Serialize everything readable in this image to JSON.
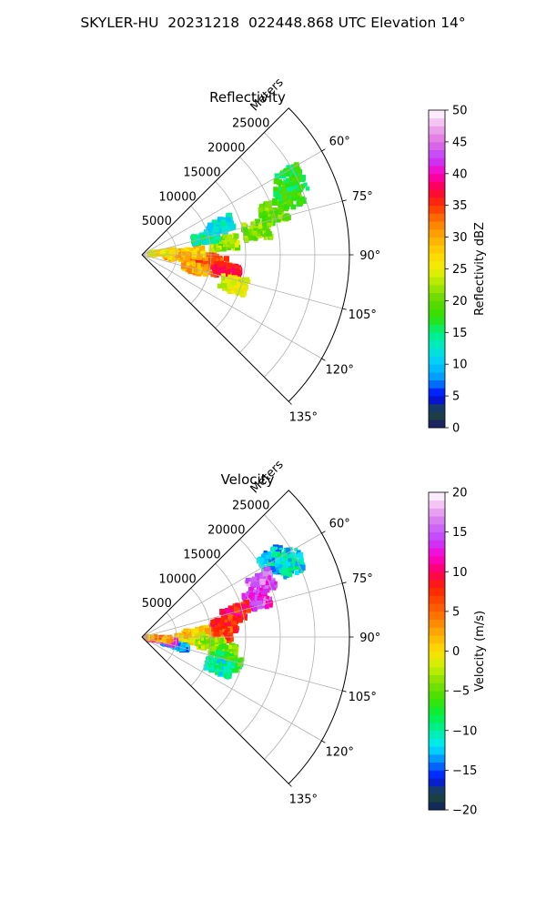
{
  "figure": {
    "title": "SKYLER-HU  20231218  022448.868 UTC Elevation 14°"
  },
  "chart_data": [
    {
      "type": "heatmap",
      "projection": "polar-sector",
      "title": "Reflectivity",
      "radial_label": "Meters",
      "radial_ticks": [
        5000,
        10000,
        15000,
        20000,
        25000
      ],
      "radial_tick_labels": [
        "5000",
        "10000",
        "15000",
        "20000",
        "25000"
      ],
      "rlim": [
        0,
        30000
      ],
      "azimuth_ticks": [
        60,
        75,
        90,
        105,
        120,
        135
      ],
      "azimuth_tick_labels": [
        "60°",
        "75°",
        "90°",
        "105°",
        "120°",
        "135°"
      ],
      "azimuth_range": [
        45,
        135
      ],
      "grid": true,
      "colorbar": {
        "label": "Reflectivity dBZ",
        "range": [
          0,
          50
        ],
        "ticks": [
          0,
          5,
          10,
          15,
          20,
          25,
          30,
          35,
          40,
          45,
          50
        ],
        "tick_labels": [
          "0",
          "5",
          "10",
          "15",
          "20",
          "25",
          "30",
          "35",
          "40",
          "45",
          "50"
        ],
        "colormap_stops": [
          [
            0,
            "#1a1a6e"
          ],
          [
            2.5,
            "#1f4a3a"
          ],
          [
            5,
            "#0000ff"
          ],
          [
            7.5,
            "#0090ff"
          ],
          [
            10,
            "#00c8ff"
          ],
          [
            12.5,
            "#00e8d0"
          ],
          [
            15,
            "#00f080"
          ],
          [
            17.5,
            "#30e000"
          ],
          [
            20,
            "#60d800"
          ],
          [
            22.5,
            "#a8e800"
          ],
          [
            25,
            "#f0f000"
          ],
          [
            27.5,
            "#ffd400"
          ],
          [
            30,
            "#ffaa00"
          ],
          [
            32.5,
            "#ff7a00"
          ],
          [
            35,
            "#ff3000"
          ],
          [
            37.5,
            "#ff0040"
          ],
          [
            40,
            "#ff00c0"
          ],
          [
            42.5,
            "#c040ff"
          ],
          [
            45,
            "#e070e0"
          ],
          [
            47.5,
            "#f0b0f0"
          ],
          [
            50,
            "#ffffff"
          ]
        ]
      },
      "echo_cells": [
        {
          "az": 94,
          "r": 9000,
          "value": 34
        },
        {
          "az": 97,
          "r": 11000,
          "value": 33
        },
        {
          "az": 101,
          "r": 12500,
          "value": 36
        },
        {
          "az": 88,
          "r": 7000,
          "value": 28
        },
        {
          "az": 93,
          "r": 5000,
          "value": 29
        },
        {
          "az": 104,
          "r": 8000,
          "value": 30
        },
        {
          "az": 108,
          "r": 14000,
          "value": 25
        },
        {
          "az": 82,
          "r": 12000,
          "value": 22
        },
        {
          "az": 78,
          "r": 17000,
          "value": 21
        },
        {
          "az": 72,
          "r": 20000,
          "value": 20
        },
        {
          "az": 68,
          "r": 23000,
          "value": 18
        },
        {
          "az": 64,
          "r": 24000,
          "value": 17
        },
        {
          "az": 85,
          "r": 3000,
          "value": 26
        },
        {
          "az": 75,
          "r": 9500,
          "value": 14
        },
        {
          "az": 70,
          "r": 12000,
          "value": 12
        }
      ]
    },
    {
      "type": "heatmap",
      "projection": "polar-sector",
      "title": "Velocity",
      "radial_label": "Meters",
      "radial_ticks": [
        5000,
        10000,
        15000,
        20000,
        25000
      ],
      "radial_tick_labels": [
        "5000",
        "10000",
        "15000",
        "20000",
        "25000"
      ],
      "rlim": [
        0,
        30000
      ],
      "azimuth_ticks": [
        60,
        75,
        90,
        105,
        120,
        135
      ],
      "azimuth_tick_labels": [
        "60°",
        "75°",
        "90°",
        "105°",
        "120°",
        "135°"
      ],
      "azimuth_range": [
        45,
        135
      ],
      "grid": true,
      "colorbar": {
        "label": "Velocity (m/s)",
        "range": [
          -20,
          20
        ],
        "ticks": [
          -20,
          -15,
          -10,
          -5,
          0,
          5,
          10,
          15,
          20
        ],
        "tick_labels": [
          "−20",
          "−15",
          "−10",
          "−5",
          "0",
          "5",
          "10",
          "15",
          "20"
        ],
        "colormap_stops": [
          [
            -20,
            "#102060"
          ],
          [
            -18,
            "#1f4a3a"
          ],
          [
            -16,
            "#0010ff"
          ],
          [
            -14,
            "#0080ff"
          ],
          [
            -12,
            "#00e8ff"
          ],
          [
            -10,
            "#00f0a0"
          ],
          [
            -8,
            "#00f040"
          ],
          [
            -6,
            "#40e000"
          ],
          [
            -4,
            "#80e000"
          ],
          [
            -2,
            "#c8f000"
          ],
          [
            0,
            "#ffe000"
          ],
          [
            2,
            "#ffb000"
          ],
          [
            4,
            "#ff8000"
          ],
          [
            6,
            "#ff5000"
          ],
          [
            8,
            "#ff2000"
          ],
          [
            10,
            "#ff0060"
          ],
          [
            12,
            "#ff00d0"
          ],
          [
            14,
            "#c040ff"
          ],
          [
            16,
            "#d070f0"
          ],
          [
            18,
            "#f0b0f0"
          ],
          [
            20,
            "#ffffff"
          ]
        ]
      },
      "echo_cells": [
        {
          "az": 60,
          "r": 22000,
          "value": -12
        },
        {
          "az": 63,
          "r": 24000,
          "value": -11
        },
        {
          "az": 66,
          "r": 19000,
          "value": 15
        },
        {
          "az": 72,
          "r": 17500,
          "value": 14
        },
        {
          "az": 76,
          "r": 14000,
          "value": 9
        },
        {
          "az": 82,
          "r": 12000,
          "value": 8
        },
        {
          "az": 88,
          "r": 11000,
          "value": 6
        },
        {
          "az": 86,
          "r": 8000,
          "value": 1
        },
        {
          "az": 92,
          "r": 7000,
          "value": 0
        },
        {
          "az": 96,
          "r": 10000,
          "value": -3
        },
        {
          "az": 100,
          "r": 12000,
          "value": -5
        },
        {
          "az": 106,
          "r": 13000,
          "value": -7
        },
        {
          "az": 111,
          "r": 12000,
          "value": -10
        },
        {
          "az": 104,
          "r": 5000,
          "value": -13
        },
        {
          "az": 100,
          "r": 3000,
          "value": 14
        },
        {
          "az": 95,
          "r": 2500,
          "value": 3
        }
      ]
    }
  ]
}
